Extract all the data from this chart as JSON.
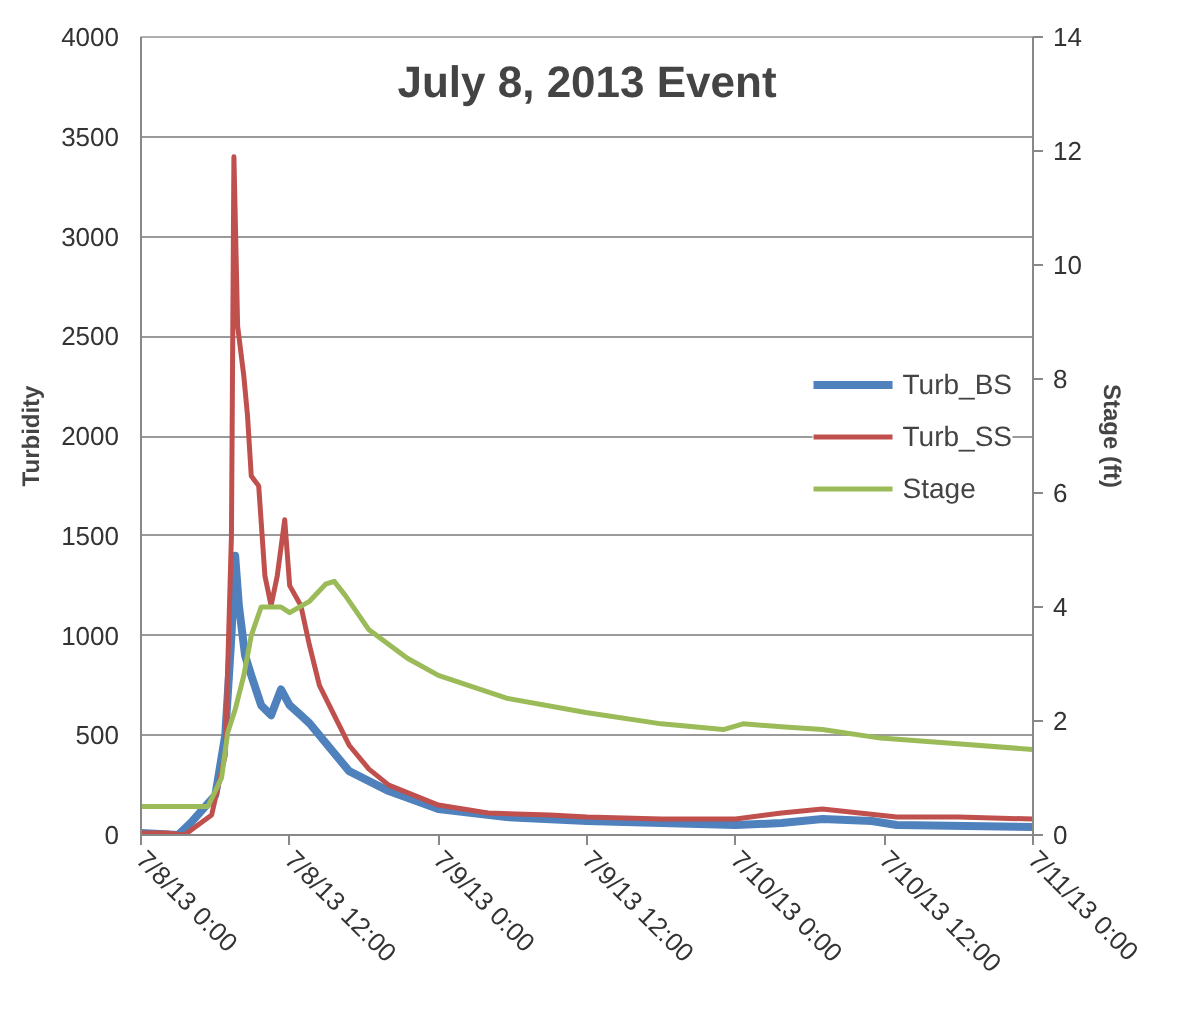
{
  "chart_data": {
    "type": "line",
    "title": "July 8, 2013 Event",
    "ylabel": "Turbidity",
    "y2label": "Stage (ft)",
    "xlim": [
      "2013-07-08T00:00",
      "2013-07-11T00:00"
    ],
    "xticks": [
      {
        "value": "2013-07-08T00:00",
        "label": "7/8/13 0:00"
      },
      {
        "value": "2013-07-08T12:00",
        "label": "7/8/13 12:00"
      },
      {
        "value": "2013-07-09T00:00",
        "label": "7/9/13 0:00"
      },
      {
        "value": "2013-07-09T12:00",
        "label": "7/9/13 12:00"
      },
      {
        "value": "2013-07-10T00:00",
        "label": "7/10/13 0:00"
      },
      {
        "value": "2013-07-10T12:00",
        "label": "7/10/13 12:00"
      },
      {
        "value": "2013-07-11T00:00",
        "label": "7/11/13 0:00"
      }
    ],
    "ylim": [
      0,
      4000
    ],
    "yticks": [
      0,
      500,
      1000,
      1500,
      2000,
      2500,
      3000,
      3500,
      4000
    ],
    "y2lim": [
      0,
      14
    ],
    "y2ticks": [
      0,
      2,
      4,
      6,
      8,
      10,
      12,
      14
    ],
    "grid": "y",
    "legend": "right",
    "line_style": "solid",
    "series": [
      {
        "name": "Turb_BS",
        "color": "#4f81bd",
        "x": [
          "2013-07-08T00:00",
          "2013-07-08T03:00",
          "2013-07-08T04:00",
          "2013-07-08T06:00",
          "2013-07-08T06:48",
          "2013-07-08T07:18",
          "2013-07-08T07:36",
          "2013-07-08T07:54",
          "2013-07-08T08:24",
          "2013-07-08T08:54",
          "2013-07-08T09:42",
          "2013-07-08T10:30",
          "2013-07-08T11:18",
          "2013-07-08T12:00",
          "2013-07-08T12:54",
          "2013-07-08T13:36",
          "2013-07-08T15:12",
          "2013-07-08T16:48",
          "2013-07-08T20:00",
          "2013-07-09T00:00",
          "2013-07-09T05:30",
          "2013-07-09T12:00",
          "2013-07-10T00:00",
          "2013-07-10T03:42",
          "2013-07-10T07:00",
          "2013-07-10T11:00",
          "2013-07-10T13:00",
          "2013-07-11T00:00"
        ],
        "values": [
          10,
          0,
          60,
          200,
          500,
          1000,
          1400,
          1150,
          900,
          800,
          650,
          600,
          730,
          650,
          600,
          560,
          440,
          320,
          220,
          130,
          90,
          70,
          50,
          60,
          80,
          70,
          50,
          40
        ]
      },
      {
        "name": "Turb_SS",
        "color": "#c0504d",
        "x": [
          "2013-07-08T00:00",
          "2013-07-08T02:00",
          "2013-07-08T03:30",
          "2013-07-08T05:42",
          "2013-07-08T06:48",
          "2013-07-08T07:18",
          "2013-07-08T07:30",
          "2013-07-08T07:48",
          "2013-07-08T08:18",
          "2013-07-08T08:36",
          "2013-07-08T08:54",
          "2013-07-08T09:30",
          "2013-07-08T10:00",
          "2013-07-08T10:30",
          "2013-07-08T11:00",
          "2013-07-08T11:36",
          "2013-07-08T12:00",
          "2013-07-08T12:54",
          "2013-07-08T13:36",
          "2013-07-08T14:24",
          "2013-07-08T15:12",
          "2013-07-08T16:48",
          "2013-07-08T18:24",
          "2013-07-08T20:00",
          "2013-07-09T00:00",
          "2013-07-09T04:00",
          "2013-07-09T09:00",
          "2013-07-09T12:00",
          "2013-07-09T18:00",
          "2013-07-10T00:00",
          "2013-07-10T03:42",
          "2013-07-10T07:00",
          "2013-07-10T10:00",
          "2013-07-10T13:00",
          "2013-07-10T18:00",
          "2013-07-11T00:00"
        ],
        "values": [
          10,
          10,
          0,
          100,
          400,
          1500,
          3400,
          2550,
          2300,
          2100,
          1800,
          1750,
          1300,
          1150,
          1300,
          1580,
          1250,
          1150,
          950,
          750,
          650,
          450,
          330,
          250,
          150,
          110,
          100,
          90,
          80,
          80,
          110,
          130,
          110,
          90,
          90,
          80
        ]
      },
      {
        "name": "Stage",
        "color": "#9bbb59",
        "axis": "y2",
        "x": [
          "2013-07-08T00:00",
          "2013-07-08T05:24",
          "2013-07-08T06:30",
          "2013-07-08T07:00",
          "2013-07-08T07:36",
          "2013-07-08T08:18",
          "2013-07-08T08:54",
          "2013-07-08T09:42",
          "2013-07-08T11:18",
          "2013-07-08T12:00",
          "2013-07-08T13:36",
          "2013-07-08T14:54",
          "2013-07-08T15:36",
          "2013-07-08T16:30",
          "2013-07-08T18:24",
          "2013-07-08T21:30",
          "2013-07-09T00:00",
          "2013-07-09T05:30",
          "2013-07-09T11:54",
          "2013-07-09T18:00",
          "2013-07-09T23:00",
          "2013-07-10T00:36",
          "2013-07-10T03:42",
          "2013-07-10T07:00",
          "2013-07-10T11:42",
          "2013-07-10T17:54",
          "2013-07-11T00:00"
        ],
        "values": [
          0.5,
          0.5,
          1.0,
          1.8,
          2.2,
          2.8,
          3.5,
          4.0,
          4.0,
          3.9,
          4.1,
          4.4,
          4.45,
          4.2,
          3.6,
          3.1,
          2.8,
          2.4,
          2.15,
          1.95,
          1.85,
          1.95,
          1.9,
          1.85,
          1.7,
          1.6,
          1.5
        ]
      }
    ]
  }
}
